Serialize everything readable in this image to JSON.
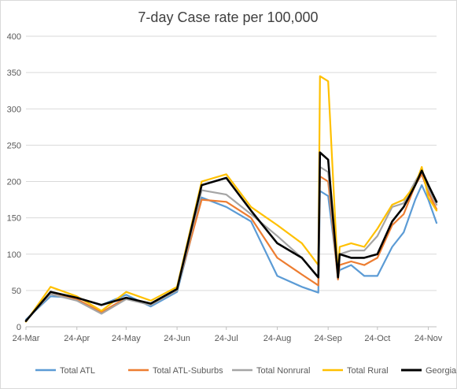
{
  "chart_data": {
    "type": "line",
    "title": "7-day Case rate per 100,000",
    "xlabel": "",
    "ylabel": "",
    "ylim": [
      0,
      400
    ],
    "yticks": [
      0,
      50,
      100,
      150,
      200,
      250,
      300,
      350,
      400
    ],
    "x_tick_labels": [
      "24-Mar",
      "24-Apr",
      "24-May",
      "24-Jun",
      "24-Jul",
      "24-Aug",
      "24-Sep",
      "24-Oct",
      "24-Nov"
    ],
    "x_range": [
      "2020-03-24",
      "2020-11-29"
    ],
    "grid": "horizontal",
    "legend_position": "bottom",
    "x": [
      "2020-03-24",
      "2020-04-08",
      "2020-04-24",
      "2020-05-09",
      "2020-05-24",
      "2020-06-08",
      "2020-06-24",
      "2020-07-09",
      "2020-07-24",
      "2020-08-08",
      "2020-08-24",
      "2020-09-08",
      "2020-09-18",
      "2020-09-19",
      "2020-09-24",
      "2020-09-30",
      "2020-10-01",
      "2020-10-08",
      "2020-10-16",
      "2020-10-24",
      "2020-11-02",
      "2020-11-09",
      "2020-11-16",
      "2020-11-20",
      "2020-11-24",
      "2020-11-29"
    ],
    "series": [
      {
        "name": "Total ATL",
        "color": "#5b9bd5",
        "values": [
          10,
          42,
          40,
          30,
          44,
          28,
          48,
          178,
          165,
          145,
          70,
          55,
          47,
          187,
          180,
          70,
          78,
          85,
          70,
          70,
          110,
          130,
          175,
          195,
          175,
          143
        ]
      },
      {
        "name": "Total ATL-Suburbs",
        "color": "#ed7d31",
        "values": [
          8,
          48,
          38,
          20,
          40,
          32,
          52,
          175,
          172,
          150,
          95,
          72,
          57,
          207,
          200,
          65,
          85,
          90,
          85,
          95,
          140,
          155,
          195,
          210,
          185,
          162
        ]
      },
      {
        "name": "Total Nonrural",
        "color": "#a5a5a5",
        "values": [
          9,
          45,
          36,
          18,
          38,
          30,
          50,
          188,
          182,
          155,
          125,
          95,
          68,
          220,
          213,
          70,
          100,
          105,
          105,
          125,
          165,
          170,
          200,
          215,
          190,
          168
        ]
      },
      {
        "name": "Total Rural",
        "color": "#ffc000",
        "values": [
          7,
          55,
          42,
          22,
          48,
          36,
          55,
          200,
          210,
          165,
          140,
          115,
          85,
          345,
          338,
          70,
          110,
          115,
          110,
          135,
          168,
          175,
          195,
          220,
          178,
          160
        ]
      },
      {
        "name": "Georgia",
        "color": "#000000",
        "values": [
          8,
          48,
          40,
          30,
          40,
          32,
          52,
          195,
          205,
          160,
          115,
          95,
          68,
          240,
          230,
          68,
          100,
          95,
          95,
          100,
          145,
          165,
          195,
          215,
          195,
          172
        ]
      }
    ]
  }
}
